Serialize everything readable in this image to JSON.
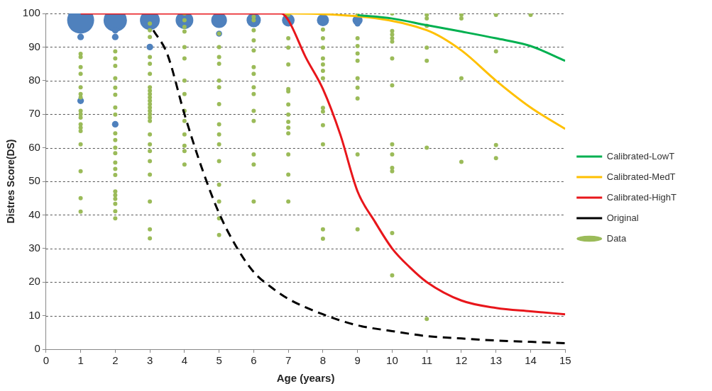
{
  "chart_data": {
    "type": "line",
    "xlabel": "Age (years)",
    "ylabel": "Distres Score(DS)",
    "xlim": [
      0,
      15
    ],
    "xticks": [
      0,
      1,
      2,
      3,
      4,
      5,
      6,
      7,
      8,
      9,
      10,
      11,
      12,
      13,
      14,
      15
    ],
    "ylim": [
      0,
      100
    ],
    "yticks": [
      0,
      10,
      20,
      30,
      40,
      50,
      60,
      70,
      80,
      90,
      100
    ],
    "grid": "y",
    "legend": "right",
    "series": [
      {
        "name": "Calibrated-LowT",
        "type": "line",
        "color": "#00b050",
        "marker": "none",
        "line_style": "solid",
        "x": [
          9,
          10,
          11,
          12,
          13,
          14,
          15
        ],
        "values": [
          99.5,
          98.5,
          96.5,
          94.6,
          92.6,
          90.3,
          85.9
        ]
      },
      {
        "name": "Calibrated-MedT",
        "type": "line",
        "color": "#ffc000",
        "marker": "none",
        "line_style": "solid",
        "x": [
          6.9,
          8,
          11,
          12,
          13,
          14,
          15
        ],
        "values": [
          100,
          99.8,
          95,
          89,
          80,
          72,
          65.6
        ]
      },
      {
        "name": "Calibrated-HighT",
        "type": "line",
        "color": "#e8161b",
        "marker": "none",
        "line_style": "solid",
        "x": [
          1,
          6.8,
          7,
          7.5,
          8,
          8.5,
          9,
          9.5,
          10,
          10.5,
          11,
          12,
          13,
          14,
          15
        ],
        "values": [
          100,
          100,
          98,
          87,
          77.5,
          64,
          47,
          38,
          30,
          24.5,
          20,
          14.5,
          12.3,
          11.3,
          10.4
        ]
      },
      {
        "name": "Original",
        "type": "line",
        "color": "#000000",
        "marker": "none",
        "line_style": "dashed",
        "x": [
          3.1,
          3.5,
          4,
          4.5,
          5,
          5.5,
          6,
          6.5,
          7,
          8,
          9,
          10,
          11,
          12,
          13,
          14,
          15
        ],
        "values": [
          95,
          88,
          70,
          54,
          40.5,
          30.5,
          23,
          18.5,
          15,
          10.4,
          7.1,
          5.4,
          3.9,
          3.2,
          2.6,
          2.2,
          1.8
        ]
      },
      {
        "name": "Data",
        "type": "scatter",
        "color": "#9bbb59",
        "marker": "circle",
        "x": [
          1,
          1,
          1,
          1,
          1,
          1,
          1,
          1,
          1,
          1,
          1,
          1,
          1,
          1,
          1,
          1,
          1,
          2,
          2,
          2,
          2,
          2,
          2,
          2,
          2,
          2,
          2,
          2,
          2,
          2,
          2,
          2,
          2,
          2,
          2,
          2,
          2,
          2,
          3,
          3,
          3,
          3,
          3,
          3,
          3,
          3,
          3,
          3,
          3,
          3,
          3,
          3,
          3,
          3,
          3,
          3,
          3,
          3,
          3,
          3,
          3,
          3,
          3,
          4,
          4,
          4,
          4,
          4,
          4,
          4,
          4,
          4,
          4,
          4,
          4,
          4,
          4,
          5,
          5,
          5,
          5,
          5,
          5,
          5,
          5,
          5,
          5,
          5,
          5,
          5,
          5,
          5,
          6,
          6,
          6,
          6,
          6,
          6,
          6,
          6,
          6,
          6,
          6,
          6,
          6,
          6,
          7,
          7,
          7,
          7,
          7,
          7,
          7,
          7,
          7,
          7,
          7,
          7,
          7,
          7,
          8,
          8,
          8,
          8,
          8,
          8,
          8,
          8,
          8,
          8,
          8,
          8,
          8,
          9,
          9,
          9,
          9,
          9,
          9,
          9,
          9,
          9,
          9,
          10,
          10,
          10,
          10,
          10,
          10,
          10,
          10,
          10,
          10,
          10,
          10,
          10,
          11,
          11,
          11,
          11,
          11,
          11,
          11,
          12,
          12,
          12,
          12,
          13,
          13,
          13,
          13,
          14
        ],
        "values": [
          88,
          87,
          84,
          82,
          78,
          76,
          75,
          71,
          70,
          69,
          67,
          66,
          65,
          61,
          53,
          45,
          41,
          88.7,
          86.6,
          84.4,
          80.7,
          77.9,
          75.8,
          72,
          69.9,
          64.3,
          62.3,
          60,
          58.4,
          55.6,
          53.7,
          51.9,
          47,
          45.9,
          44.8,
          43.3,
          41.1,
          39,
          97,
          95,
          93,
          87,
          85,
          82,
          78,
          77,
          76,
          75,
          74,
          73,
          72,
          71,
          70,
          69,
          68,
          64,
          61,
          59,
          56,
          52,
          44,
          35.7,
          33,
          100,
          98,
          96,
          94.6,
          90,
          86.6,
          80,
          76,
          71,
          68,
          64,
          60.6,
          59,
          55,
          94,
          90,
          87,
          85,
          80,
          78,
          73,
          67,
          64,
          61,
          56,
          49,
          44,
          39,
          34,
          95,
          92,
          89,
          84,
          82,
          78,
          76,
          71,
          68,
          58,
          55,
          44,
          99,
          98,
          99.6,
          92.6,
          89.8,
          84.8,
          77.5,
          76.8,
          72.9,
          69.9,
          67.7,
          66,
          64.3,
          58,
          52,
          44,
          95.2,
          92.6,
          89.8,
          86.6,
          84.8,
          82.9,
          80.7,
          71.9,
          70.8,
          66.7,
          61,
          35.7,
          32.9,
          99.6,
          92.6,
          90.3,
          88.1,
          85.9,
          80.7,
          77.9,
          74.7,
          58,
          35.7,
          100,
          94.8,
          93.7,
          92.6,
          91.6,
          86.6,
          78.6,
          61,
          58,
          54,
          53,
          34.6,
          22,
          99.6,
          98.5,
          96.3,
          89.8,
          85.9,
          60,
          9,
          99.6,
          98.5,
          80.7,
          55.8,
          99.6,
          88.7,
          60.8,
          56.9,
          99.6
        ]
      },
      {
        "type": "bubble",
        "color": "#4f81bd",
        "x": [
          1,
          2,
          3,
          4,
          5,
          6,
          7,
          8,
          9,
          1,
          1,
          2,
          2,
          2,
          3,
          5,
          9
        ],
        "values": [
          98,
          98,
          98,
          98,
          98,
          98,
          98,
          98,
          98,
          93,
          74,
          95,
          93,
          67,
          90,
          94,
          97
        ],
        "sizes": [
          1,
          0.75,
          0.54,
          0.43,
          0.34,
          0.28,
          0.22,
          0.2,
          0.14,
          0.06,
          0.06,
          0.06,
          0.06,
          0.06,
          0.06,
          0.05,
          0.05
        ]
      }
    ]
  }
}
